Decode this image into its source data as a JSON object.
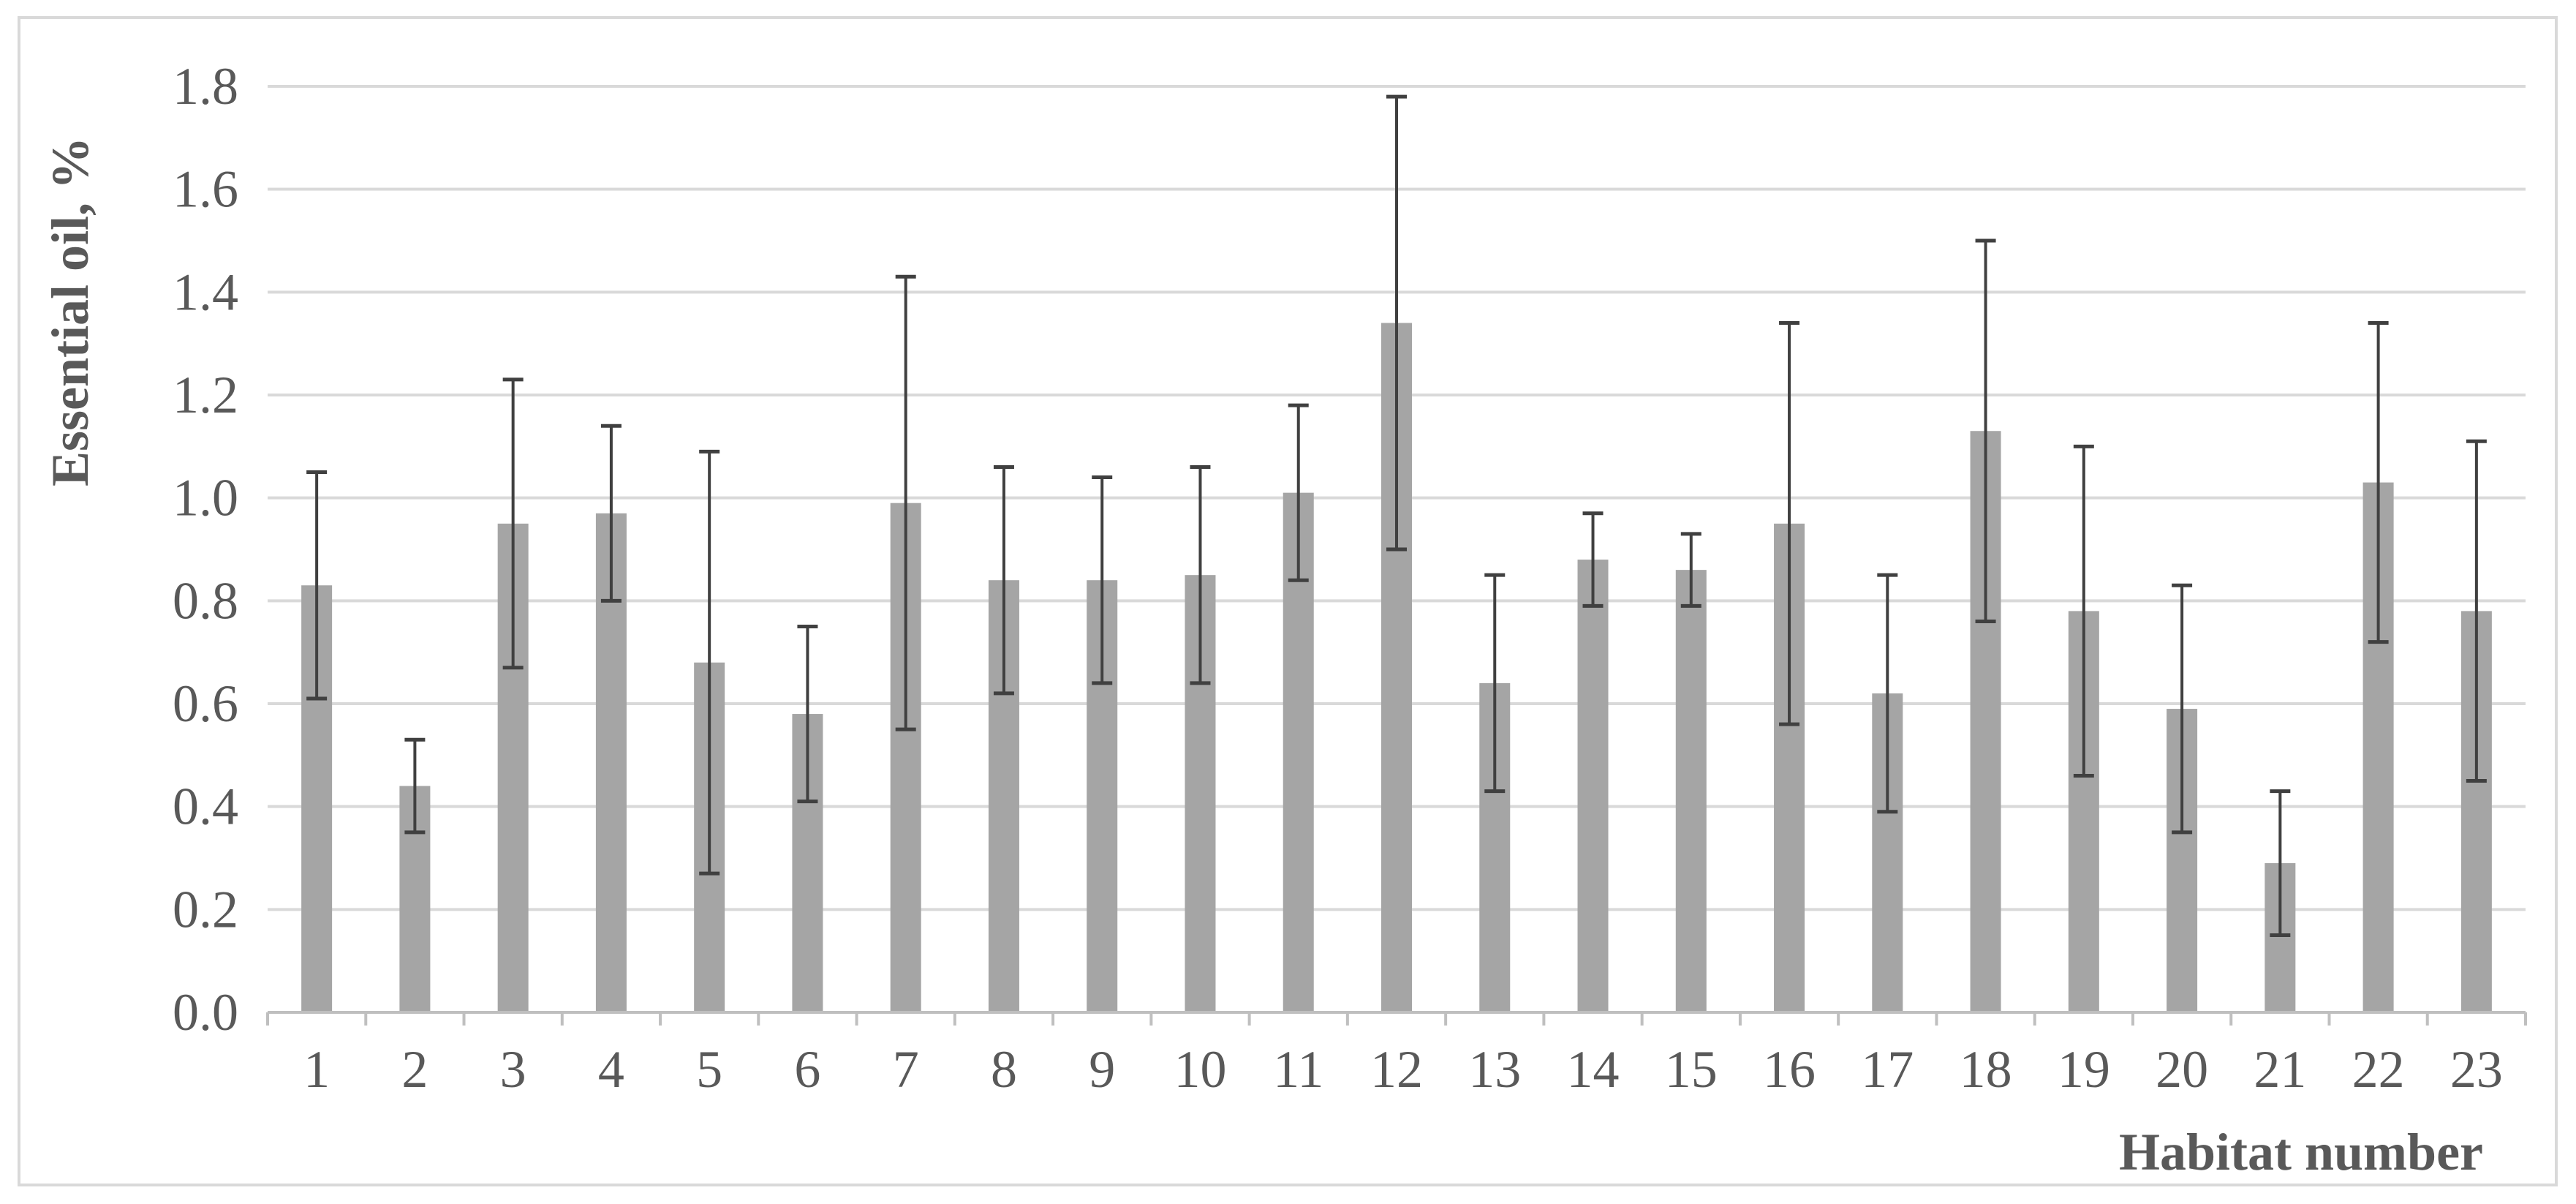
{
  "chart_data": {
    "type": "bar",
    "title": "",
    "xlabel": "Habitat number",
    "ylabel": "Essential oil, %",
    "categories": [
      "1",
      "2",
      "3",
      "4",
      "5",
      "6",
      "7",
      "8",
      "9",
      "10",
      "11",
      "12",
      "13",
      "14",
      "15",
      "16",
      "17",
      "18",
      "19",
      "20",
      "21",
      "22",
      "23"
    ],
    "values": [
      0.83,
      0.44,
      0.95,
      0.97,
      0.68,
      0.58,
      0.99,
      0.84,
      0.84,
      0.85,
      1.01,
      1.34,
      0.64,
      0.88,
      0.86,
      0.95,
      0.62,
      1.13,
      0.78,
      0.59,
      0.29,
      1.03,
      0.78
    ],
    "error_upper": [
      1.05,
      0.53,
      1.23,
      1.14,
      1.09,
      0.75,
      1.43,
      1.06,
      1.04,
      1.06,
      1.18,
      1.78,
      0.85,
      0.97,
      0.93,
      1.34,
      0.85,
      1.5,
      1.1,
      0.83,
      0.43,
      1.34,
      1.11
    ],
    "error_lower": [
      0.61,
      0.35,
      0.67,
      0.8,
      0.27,
      0.41,
      0.55,
      0.62,
      0.64,
      0.64,
      0.84,
      0.9,
      0.43,
      0.79,
      0.79,
      0.56,
      0.39,
      0.76,
      0.46,
      0.35,
      0.15,
      0.72,
      0.45
    ],
    "ylim": [
      0,
      1.8
    ],
    "yticks": [
      "0.0",
      "0.2",
      "0.4",
      "0.6",
      "0.8",
      "1.0",
      "1.2",
      "1.4",
      "1.6",
      "1.8"
    ],
    "grid": true,
    "legend": "none",
    "colors": {
      "bar": "#a5a5a5",
      "error_bar": "#404040",
      "grid": "#d9d9d9",
      "axis": "#bfbfbf",
      "text": "#595959"
    }
  }
}
